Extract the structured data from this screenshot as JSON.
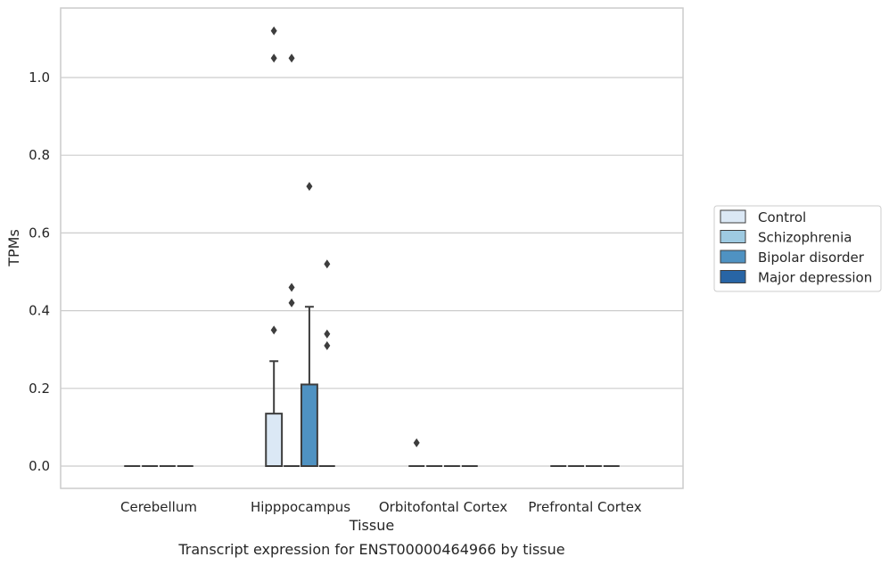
{
  "chart_data": {
    "type": "box",
    "title": "",
    "caption": "Transcript expression for ENST00000464966 by tissue",
    "xlabel": "Tissue",
    "ylabel": "TPMs",
    "ylim": [
      -0.055,
      1.18
    ],
    "yticks": [
      0.0,
      0.2,
      0.4,
      0.6,
      0.8,
      1.0
    ],
    "ytick_labels": [
      "0.0",
      "0.2",
      "0.4",
      "0.6",
      "0.8",
      "1.0"
    ],
    "grid": "horizontal",
    "legend_position": "right",
    "categories": [
      "Cerebellum",
      "Hipppocampus",
      "Orbitofontal Cortex",
      "Prefrontal Cortex"
    ],
    "series": [
      {
        "name": "Control",
        "color": "#dbe8f5",
        "boxes": [
          {
            "q1": 0,
            "median": 0,
            "q3": 0,
            "whisker_low": 0,
            "whisker_high": 0,
            "outliers": []
          },
          {
            "q1": 0,
            "median": 0,
            "q3": 0.135,
            "whisker_low": 0,
            "whisker_high": 0.27,
            "outliers": [
              0.35,
              1.05,
              1.12
            ]
          },
          {
            "q1": 0,
            "median": 0,
            "q3": 0,
            "whisker_low": 0,
            "whisker_high": 0,
            "outliers": [
              0.06
            ]
          },
          {
            "q1": 0,
            "median": 0,
            "q3": 0,
            "whisker_low": 0,
            "whisker_high": 0,
            "outliers": []
          }
        ]
      },
      {
        "name": "Schizophrenia",
        "color": "#9ecae1",
        "boxes": [
          {
            "q1": 0,
            "median": 0,
            "q3": 0,
            "whisker_low": 0,
            "whisker_high": 0,
            "outliers": []
          },
          {
            "q1": 0,
            "median": 0,
            "q3": 0,
            "whisker_low": 0,
            "whisker_high": 0,
            "outliers": [
              0.42,
              0.46,
              1.05
            ]
          },
          {
            "q1": 0,
            "median": 0,
            "q3": 0,
            "whisker_low": 0,
            "whisker_high": 0,
            "outliers": []
          },
          {
            "q1": 0,
            "median": 0,
            "q3": 0,
            "whisker_low": 0,
            "whisker_high": 0,
            "outliers": []
          }
        ]
      },
      {
        "name": "Bipolar disorder",
        "color": "#4f92c2",
        "boxes": [
          {
            "q1": 0,
            "median": 0,
            "q3": 0,
            "whisker_low": 0,
            "whisker_high": 0,
            "outliers": []
          },
          {
            "q1": 0,
            "median": 0,
            "q3": 0.21,
            "whisker_low": 0,
            "whisker_high": 0.41,
            "outliers": [
              0.72
            ]
          },
          {
            "q1": 0,
            "median": 0,
            "q3": 0,
            "whisker_low": 0,
            "whisker_high": 0,
            "outliers": []
          },
          {
            "q1": 0,
            "median": 0,
            "q3": 0,
            "whisker_low": 0,
            "whisker_high": 0,
            "outliers": []
          }
        ]
      },
      {
        "name": "Major depression",
        "color": "#2865a5",
        "boxes": [
          {
            "q1": 0,
            "median": 0,
            "q3": 0,
            "whisker_low": 0,
            "whisker_high": 0,
            "outliers": []
          },
          {
            "q1": 0,
            "median": 0,
            "q3": 0,
            "whisker_low": 0,
            "whisker_high": 0,
            "outliers": [
              0.31,
              0.34,
              0.52
            ]
          },
          {
            "q1": 0,
            "median": 0,
            "q3": 0,
            "whisker_low": 0,
            "whisker_high": 0,
            "outliers": []
          },
          {
            "q1": 0,
            "median": 0,
            "q3": 0,
            "whisker_low": 0,
            "whisker_high": 0,
            "outliers": []
          }
        ]
      }
    ]
  }
}
